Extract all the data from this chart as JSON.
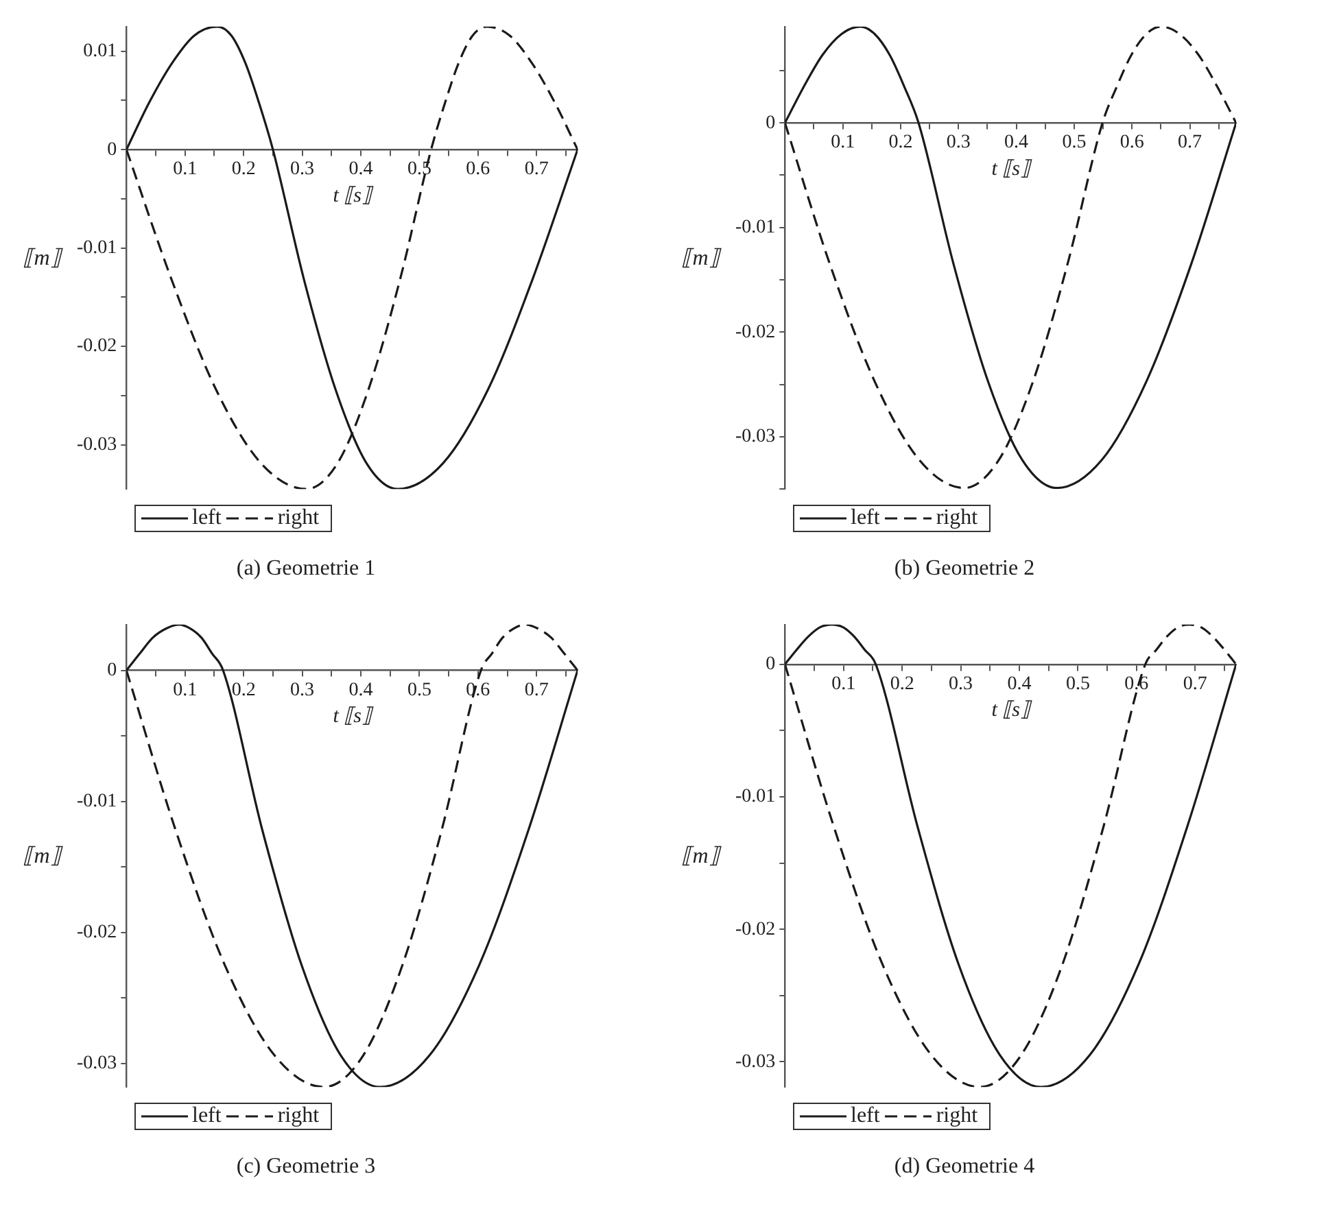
{
  "chart_data": [
    {
      "type": "line",
      "title": "(a) Geometrie 1",
      "xlabel": "t ⟦s⟧",
      "ylabel": "⟦m⟧",
      "xlim": [
        0,
        0.77
      ],
      "ylim": [
        -0.0345,
        0.0125
      ],
      "xticks": [
        {
          "value": 0.05,
          "label": null
        },
        0.1,
        {
          "value": 0.15,
          "label": null
        },
        0.2,
        {
          "value": 0.25,
          "label": null
        },
        0.3,
        {
          "value": 0.35,
          "label": null
        },
        0.4,
        {
          "value": 0.45,
          "label": null
        },
        0.5,
        {
          "value": 0.55,
          "label": null
        },
        0.6,
        {
          "value": 0.65,
          "label": null
        },
        0.7,
        {
          "value": 0.75,
          "label": null
        }
      ],
      "yticks": [
        -0.03,
        {
          "value": -0.025,
          "label": null
        },
        -0.02,
        {
          "value": -0.015,
          "label": null
        },
        -0.01,
        {
          "value": -0.005,
          "label": null
        },
        0,
        {
          "value": 0.005,
          "label": null
        },
        0.01
      ],
      "grid": false,
      "legend": "bottom left",
      "marker": "none",
      "series": [
        {
          "name": "left",
          "color": "#1a1a1a",
          "line_style": "solid",
          "x": [
            0,
            0.039,
            0.078,
            0.116,
            0.155,
            0.179,
            0.203,
            0.226,
            0.25,
            0.303,
            0.357,
            0.41,
            0.463,
            0.54,
            0.617,
            0.693,
            0.77
          ],
          "values": [
            0,
            0.0048,
            0.0088,
            0.0116,
            0.0125,
            0.0116,
            0.0088,
            0.0048,
            0,
            -0.0132,
            -0.0244,
            -0.0319,
            -0.0345,
            -0.0319,
            -0.0244,
            -0.0132,
            0
          ]
        },
        {
          "name": "right",
          "color": "#1a1a1a",
          "line_style": "dashed",
          "x": [
            0,
            0.077,
            0.153,
            0.23,
            0.307,
            0.36,
            0.413,
            0.467,
            0.52,
            0.544,
            0.567,
            0.591,
            0.615,
            0.654,
            0.692,
            0.731,
            0.77
          ],
          "values": [
            0,
            -0.0132,
            -0.0244,
            -0.0319,
            -0.0345,
            -0.0319,
            -0.0244,
            -0.0132,
            0,
            0.0048,
            0.0088,
            0.0116,
            0.0125,
            0.0116,
            0.0088,
            0.0048,
            0
          ]
        }
      ]
    },
    {
      "type": "line",
      "title": "(b) Geometrie 2",
      "xlabel": "t ⟦s⟧",
      "ylabel": "⟦m⟧",
      "xlim": [
        0,
        0.78
      ],
      "ylim": [
        -0.035,
        0.0092
      ],
      "xticks": [
        {
          "value": 0.05,
          "label": null
        },
        0.1,
        {
          "value": 0.15,
          "label": null
        },
        0.2,
        {
          "value": 0.25,
          "label": null
        },
        0.3,
        {
          "value": 0.35,
          "label": null
        },
        0.4,
        {
          "value": 0.45,
          "label": null
        },
        0.5,
        {
          "value": 0.55,
          "label": null
        },
        0.6,
        {
          "value": 0.65,
          "label": null
        },
        0.7,
        {
          "value": 0.75,
          "label": null
        }
      ],
      "yticks": [
        {
          "value": -0.035,
          "label": null
        },
        -0.03,
        {
          "value": -0.025,
          "label": null
        },
        -0.02,
        {
          "value": -0.015,
          "label": null
        },
        -0.01,
        {
          "value": -0.005,
          "label": null
        },
        0,
        {
          "value": 0.005,
          "label": null
        }
      ],
      "grid": false,
      "legend": "bottom left",
      "marker": "none",
      "series": [
        {
          "name": "left",
          "color": "#1a1a1a",
          "line_style": "solid",
          "x": [
            0,
            0.033,
            0.065,
            0.098,
            0.13,
            0.155,
            0.181,
            0.206,
            0.231,
            0.291,
            0.351,
            0.41,
            0.47,
            0.548,
            0.625,
            0.703,
            0.78
          ],
          "values": [
            0,
            0.0035,
            0.0065,
            0.0085,
            0.0092,
            0.0085,
            0.0065,
            0.0035,
            0,
            -0.0134,
            -0.0247,
            -0.0322,
            -0.0349,
            -0.0322,
            -0.0247,
            -0.0134,
            0
          ]
        },
        {
          "name": "right",
          "color": "#1a1a1a",
          "line_style": "dashed",
          "x": [
            0,
            0.077,
            0.155,
            0.232,
            0.31,
            0.37,
            0.429,
            0.489,
            0.549,
            0.574,
            0.599,
            0.625,
            0.65,
            0.682,
            0.715,
            0.747,
            0.78
          ],
          "values": [
            0,
            -0.0134,
            -0.0247,
            -0.0322,
            -0.0349,
            -0.0322,
            -0.0247,
            -0.0134,
            0,
            0.0035,
            0.0065,
            0.0085,
            0.0092,
            0.0085,
            0.0065,
            0.0035,
            0
          ]
        }
      ]
    },
    {
      "type": "line",
      "title": "(c) Geometrie 3",
      "xlabel": "t ⟦s⟧",
      "ylabel": "⟦m⟧",
      "xlim": [
        0,
        0.77
      ],
      "ylim": [
        -0.0318,
        0.0035
      ],
      "xticks": [
        {
          "value": 0.05,
          "label": null
        },
        0.1,
        {
          "value": 0.15,
          "label": null
        },
        0.2,
        {
          "value": 0.25,
          "label": null
        },
        0.3,
        {
          "value": 0.35,
          "label": null
        },
        0.4,
        {
          "value": 0.45,
          "label": null
        },
        0.5,
        {
          "value": 0.55,
          "label": null
        },
        0.6,
        {
          "value": 0.65,
          "label": null
        },
        0.7,
        {
          "value": 0.75,
          "label": null
        }
      ],
      "yticks": [
        -0.03,
        {
          "value": -0.025,
          "label": null
        },
        -0.02,
        {
          "value": -0.015,
          "label": null
        },
        -0.01,
        {
          "value": -0.005,
          "label": null
        },
        0
      ],
      "grid": false,
      "legend": "bottom left",
      "marker": "none",
      "series": [
        {
          "name": "left",
          "color": "#1a1a1a",
          "line_style": "solid",
          "x": [
            0,
            0.023,
            0.045,
            0.068,
            0.09,
            0.109,
            0.128,
            0.146,
            0.165,
            0.232,
            0.299,
            0.366,
            0.433,
            0.517,
            0.602,
            0.686,
            0.77
          ],
          "values": [
            0,
            0.0013,
            0.0025,
            0.0032,
            0.0035,
            0.0032,
            0.0025,
            0.0013,
            0,
            -0.0122,
            -0.0225,
            -0.0294,
            -0.0318,
            -0.0294,
            -0.0225,
            -0.0122,
            0
          ]
        },
        {
          "name": "right",
          "color": "#1a1a1a",
          "line_style": "dashed",
          "x": [
            0,
            0.084,
            0.168,
            0.253,
            0.337,
            0.404,
            0.471,
            0.538,
            0.605,
            0.624,
            0.642,
            0.661,
            0.68,
            0.702,
            0.725,
            0.747,
            0.77
          ],
          "values": [
            0,
            -0.0122,
            -0.0225,
            -0.0294,
            -0.0318,
            -0.0294,
            -0.0225,
            -0.0122,
            0,
            0.0013,
            0.0025,
            0.0032,
            0.0035,
            0.0032,
            0.0025,
            0.0013,
            0
          ]
        }
      ]
    },
    {
      "type": "line",
      "title": "(d) Geometrie 4",
      "xlabel": "t ⟦s⟧",
      "ylabel": "⟦m⟧",
      "xlim": [
        0,
        0.77
      ],
      "ylim": [
        -0.0319,
        0.003
      ],
      "xticks": [
        {
          "value": 0.05,
          "label": null
        },
        0.1,
        {
          "value": 0.15,
          "label": null
        },
        0.2,
        {
          "value": 0.25,
          "label": null
        },
        0.3,
        {
          "value": 0.35,
          "label": null
        },
        0.4,
        {
          "value": 0.45,
          "label": null
        },
        0.5,
        {
          "value": 0.55,
          "label": null
        },
        0.6,
        {
          "value": 0.65,
          "label": null
        },
        0.7,
        {
          "value": 0.75,
          "label": null
        }
      ],
      "yticks": [
        -0.03,
        {
          "value": -0.025,
          "label": null
        },
        -0.02,
        {
          "value": -0.015,
          "label": null
        },
        -0.01,
        {
          "value": -0.005,
          "label": null
        },
        0
      ],
      "grid": false,
      "legend": "bottom left",
      "marker": "none",
      "series": [
        {
          "name": "left",
          "color": "#1a1a1a",
          "line_style": "solid",
          "x": [
            0,
            0.02,
            0.04,
            0.06,
            0.08,
            0.099,
            0.118,
            0.136,
            0.155,
            0.226,
            0.296,
            0.367,
            0.437,
            0.52,
            0.604,
            0.687,
            0.77
          ],
          "values": [
            0,
            0.0011,
            0.0021,
            0.0028,
            0.003,
            0.0028,
            0.0021,
            0.0011,
            0,
            -0.0122,
            -0.0226,
            -0.0295,
            -0.0319,
            -0.0295,
            -0.0226,
            -0.0122,
            0
          ]
        },
        {
          "name": "right",
          "color": "#1a1a1a",
          "line_style": "dashed",
          "x": [
            0,
            0.083,
            0.166,
            0.25,
            0.333,
            0.403,
            0.474,
            0.544,
            0.615,
            0.634,
            0.652,
            0.671,
            0.69,
            0.71,
            0.73,
            0.75,
            0.77
          ],
          "values": [
            0,
            -0.0122,
            -0.0226,
            -0.0295,
            -0.0319,
            -0.0295,
            -0.0226,
            -0.0122,
            0,
            0.0011,
            0.0021,
            0.0028,
            0.003,
            0.0028,
            0.0021,
            0.0011,
            0
          ]
        }
      ]
    }
  ]
}
